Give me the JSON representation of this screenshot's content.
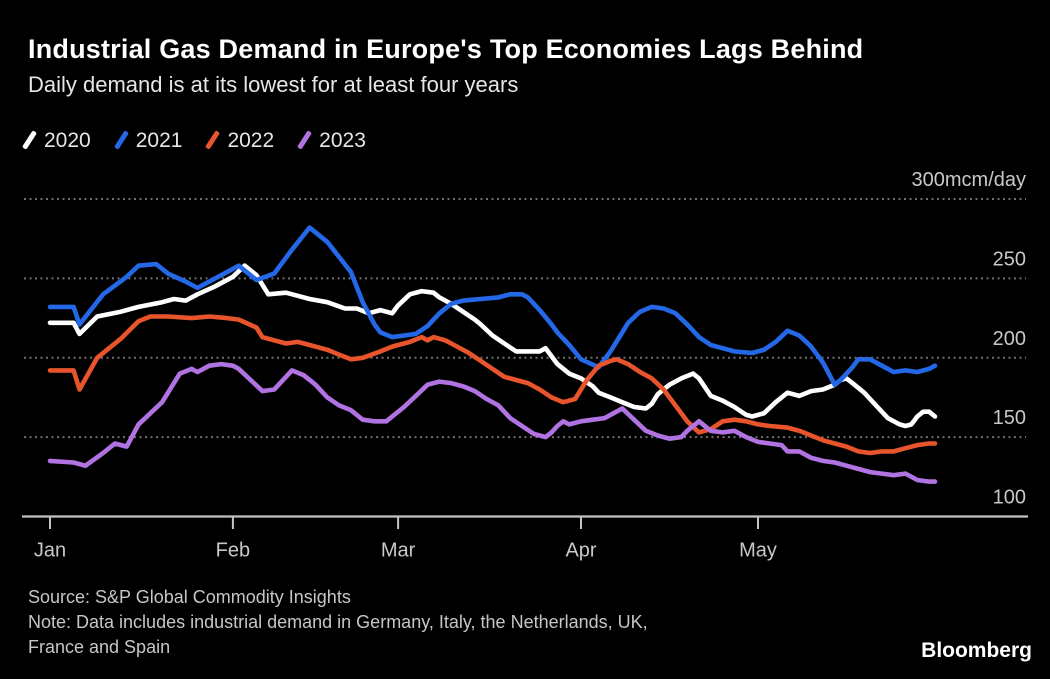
{
  "header": {
    "title": "Industrial Gas Demand in Europe's Top Economies Lags Behind",
    "subtitle": "Daily demand is at its lowest for at least four years"
  },
  "legend": {
    "items": [
      {
        "label": "2020",
        "color": "#ffffff"
      },
      {
        "label": "2021",
        "color": "#2468e8"
      },
      {
        "label": "2022",
        "color": "#e8542c"
      },
      {
        "label": "2023",
        "color": "#b273e2"
      }
    ]
  },
  "chart_data": {
    "type": "line",
    "title": "Industrial Gas Demand in Europe's Top Economies Lags Behind",
    "subtitle": "Daily demand is at its lowest for at least four years",
    "ylabel": "mcm/day",
    "ylim": [
      100,
      300
    ],
    "grid": "dotted-horizontal",
    "legend_position": "top-left",
    "x_unit": "day of year (0 = Jan 1)",
    "x_axis": {
      "tick_days": [
        0,
        31,
        59,
        90,
        120
      ],
      "tick_labels": [
        "Jan",
        "Feb",
        "Mar",
        "Apr",
        "May"
      ]
    },
    "y_axis": {
      "gridline_values": [
        300,
        250,
        200,
        150
      ],
      "baseline_value": 100,
      "labels": [
        {
          "value": 300,
          "text": "300mcm/day"
        },
        {
          "value": 250,
          "text": "250"
        },
        {
          "value": 200,
          "text": "200"
        },
        {
          "value": 150,
          "text": "150"
        },
        {
          "value": 100,
          "text": "100"
        }
      ]
    },
    "colors": {
      "gridline": "#6f6f6f",
      "axis": "#c4c4c4",
      "axis_text": "#c8c8c8"
    },
    "series": [
      {
        "name": "2020",
        "color": "#ffffff",
        "points": [
          [
            0,
            222
          ],
          [
            4,
            222
          ],
          [
            5,
            215
          ],
          [
            8,
            226
          ],
          [
            12,
            229
          ],
          [
            15,
            232
          ],
          [
            19,
            235
          ],
          [
            21,
            237
          ],
          [
            23,
            236
          ],
          [
            25,
            240
          ],
          [
            28,
            245
          ],
          [
            31,
            251
          ],
          [
            33,
            258
          ],
          [
            35,
            252
          ],
          [
            37,
            240
          ],
          [
            40,
            241
          ],
          [
            42,
            239
          ],
          [
            44,
            237
          ],
          [
            47,
            235
          ],
          [
            50,
            231
          ],
          [
            52,
            231
          ],
          [
            54,
            228
          ],
          [
            56,
            230
          ],
          [
            58,
            228
          ],
          [
            59,
            233
          ],
          [
            61,
            240
          ],
          [
            63,
            242
          ],
          [
            65,
            241
          ],
          [
            66,
            238
          ],
          [
            68,
            234
          ],
          [
            70,
            229
          ],
          [
            72,
            224
          ],
          [
            73,
            221
          ],
          [
            75,
            214
          ],
          [
            77,
            209
          ],
          [
            79,
            204
          ],
          [
            81,
            204
          ],
          [
            83,
            204
          ],
          [
            84,
            206
          ],
          [
            86,
            196
          ],
          [
            88,
            190
          ],
          [
            90,
            187
          ],
          [
            92,
            182
          ],
          [
            93,
            178
          ],
          [
            95,
            175
          ],
          [
            97,
            172
          ],
          [
            99,
            169
          ],
          [
            101,
            168
          ],
          [
            102,
            171
          ],
          [
            103,
            177
          ],
          [
            105,
            183
          ],
          [
            107,
            187
          ],
          [
            109,
            190
          ],
          [
            110,
            187
          ],
          [
            112,
            176
          ],
          [
            114,
            173
          ],
          [
            116,
            169
          ],
          [
            118,
            164
          ],
          [
            119,
            163
          ],
          [
            121,
            165
          ],
          [
            123,
            172
          ],
          [
            125,
            178
          ],
          [
            127,
            176
          ],
          [
            129,
            179
          ],
          [
            131,
            180
          ],
          [
            133,
            183
          ],
          [
            134,
            186
          ],
          [
            135,
            187
          ],
          [
            136,
            184
          ],
          [
            138,
            178
          ],
          [
            140,
            170
          ],
          [
            142,
            162
          ],
          [
            144,
            158
          ],
          [
            145,
            157
          ],
          [
            146,
            158
          ],
          [
            147,
            163
          ],
          [
            148,
            166
          ],
          [
            149,
            166
          ],
          [
            150,
            163
          ]
        ]
      },
      {
        "name": "2021",
        "color": "#2468e8",
        "points": [
          [
            0,
            232
          ],
          [
            4,
            232
          ],
          [
            5,
            221
          ],
          [
            9,
            240
          ],
          [
            13,
            251
          ],
          [
            15,
            258
          ],
          [
            18,
            259
          ],
          [
            20,
            253
          ],
          [
            23,
            248
          ],
          [
            25,
            244
          ],
          [
            28,
            250
          ],
          [
            32,
            258
          ],
          [
            35,
            249
          ],
          [
            38,
            253
          ],
          [
            41,
            268
          ],
          [
            44,
            282
          ],
          [
            47,
            273
          ],
          [
            51,
            254
          ],
          [
            53,
            235
          ],
          [
            54,
            228
          ],
          [
            55,
            221
          ],
          [
            56,
            216
          ],
          [
            58,
            213
          ],
          [
            60,
            214
          ],
          [
            62,
            215
          ],
          [
            64,
            220
          ],
          [
            66,
            228
          ],
          [
            68,
            234
          ],
          [
            70,
            236
          ],
          [
            73,
            237
          ],
          [
            76,
            238
          ],
          [
            78,
            240
          ],
          [
            80,
            240
          ],
          [
            81,
            238
          ],
          [
            83,
            230
          ],
          [
            85,
            221
          ],
          [
            86,
            216
          ],
          [
            88,
            208
          ],
          [
            90,
            199
          ],
          [
            93,
            194
          ],
          [
            95,
            204
          ],
          [
            97,
            216
          ],
          [
            98,
            222
          ],
          [
            100,
            229
          ],
          [
            102,
            232
          ],
          [
            104,
            231
          ],
          [
            106,
            228
          ],
          [
            108,
            221
          ],
          [
            110,
            213
          ],
          [
            112,
            208
          ],
          [
            114,
            206
          ],
          [
            116,
            204
          ],
          [
            119,
            203
          ],
          [
            121,
            205
          ],
          [
            123,
            210
          ],
          [
            125,
            217
          ],
          [
            127,
            214
          ],
          [
            129,
            207
          ],
          [
            131,
            197
          ],
          [
            133,
            183
          ],
          [
            134,
            186
          ],
          [
            136,
            194
          ],
          [
            137,
            199
          ],
          [
            139,
            199
          ],
          [
            141,
            195
          ],
          [
            143,
            191
          ],
          [
            145,
            192
          ],
          [
            147,
            191
          ],
          [
            149,
            193
          ],
          [
            150,
            195
          ]
        ]
      },
      {
        "name": "2022",
        "color": "#e8542c",
        "points": [
          [
            0,
            192
          ],
          [
            4,
            192
          ],
          [
            5,
            180
          ],
          [
            8,
            200
          ],
          [
            12,
            212
          ],
          [
            15,
            223
          ],
          [
            17,
            226
          ],
          [
            20,
            226
          ],
          [
            24,
            225
          ],
          [
            27,
            226
          ],
          [
            30,
            225
          ],
          [
            32,
            224
          ],
          [
            35,
            219
          ],
          [
            36,
            213
          ],
          [
            38,
            211
          ],
          [
            40,
            209
          ],
          [
            42,
            210
          ],
          [
            44,
            208
          ],
          [
            47,
            205
          ],
          [
            49,
            202
          ],
          [
            51,
            199
          ],
          [
            53,
            200
          ],
          [
            56,
            204
          ],
          [
            58,
            207
          ],
          [
            61,
            210
          ],
          [
            63,
            213
          ],
          [
            64,
            211
          ],
          [
            65,
            213
          ],
          [
            67,
            211
          ],
          [
            69,
            207
          ],
          [
            71,
            203
          ],
          [
            73,
            198
          ],
          [
            75,
            193
          ],
          [
            77,
            188
          ],
          [
            79,
            186
          ],
          [
            81,
            184
          ],
          [
            83,
            180
          ],
          [
            85,
            175
          ],
          [
            87,
            172
          ],
          [
            89,
            174
          ],
          [
            91,
            186
          ],
          [
            93,
            195
          ],
          [
            95,
            198
          ],
          [
            96,
            199
          ],
          [
            98,
            196
          ],
          [
            100,
            191
          ],
          [
            102,
            187
          ],
          [
            104,
            180
          ],
          [
            106,
            170
          ],
          [
            108,
            160
          ],
          [
            110,
            153
          ],
          [
            112,
            155
          ],
          [
            114,
            160
          ],
          [
            116,
            161
          ],
          [
            118,
            160
          ],
          [
            120,
            158
          ],
          [
            122,
            157
          ],
          [
            125,
            156
          ],
          [
            127,
            154
          ],
          [
            129,
            151
          ],
          [
            131,
            148
          ],
          [
            133,
            146
          ],
          [
            135,
            144
          ],
          [
            137,
            141
          ],
          [
            139,
            140
          ],
          [
            141,
            141
          ],
          [
            143,
            141
          ],
          [
            145,
            143
          ],
          [
            147,
            145
          ],
          [
            149,
            146
          ],
          [
            150,
            146
          ]
        ]
      },
      {
        "name": "2023",
        "color": "#b273e2",
        "points": [
          [
            0,
            135
          ],
          [
            4,
            134
          ],
          [
            6,
            132
          ],
          [
            9,
            140
          ],
          [
            11,
            146
          ],
          [
            13,
            144
          ],
          [
            15,
            158
          ],
          [
            19,
            172
          ],
          [
            22,
            190
          ],
          [
            24,
            193
          ],
          [
            25,
            191
          ],
          [
            27,
            195
          ],
          [
            29,
            196
          ],
          [
            31,
            195
          ],
          [
            32,
            193
          ],
          [
            34,
            186
          ],
          [
            36,
            179
          ],
          [
            38,
            180
          ],
          [
            40,
            188
          ],
          [
            41,
            192
          ],
          [
            43,
            189
          ],
          [
            45,
            183
          ],
          [
            47,
            175
          ],
          [
            49,
            170
          ],
          [
            51,
            167
          ],
          [
            53,
            161
          ],
          [
            55,
            160
          ],
          [
            57,
            160
          ],
          [
            58,
            163
          ],
          [
            60,
            169
          ],
          [
            62,
            176
          ],
          [
            64,
            183
          ],
          [
            66,
            185
          ],
          [
            68,
            184
          ],
          [
            70,
            182
          ],
          [
            72,
            179
          ],
          [
            74,
            174
          ],
          [
            76,
            170
          ],
          [
            78,
            162
          ],
          [
            80,
            157
          ],
          [
            82,
            152
          ],
          [
            84,
            150
          ],
          [
            85,
            153
          ],
          [
            86,
            157
          ],
          [
            87,
            160
          ],
          [
            88,
            158
          ],
          [
            90,
            160
          ],
          [
            92,
            161
          ],
          [
            94,
            162
          ],
          [
            96,
            166
          ],
          [
            97,
            168
          ],
          [
            99,
            161
          ],
          [
            101,
            154
          ],
          [
            103,
            151
          ],
          [
            105,
            149
          ],
          [
            107,
            150
          ],
          [
            108,
            154
          ],
          [
            110,
            160
          ],
          [
            112,
            154
          ],
          [
            114,
            153
          ],
          [
            116,
            154
          ],
          [
            118,
            150
          ],
          [
            120,
            147
          ],
          [
            122,
            146
          ],
          [
            124,
            145
          ],
          [
            125,
            141
          ],
          [
            127,
            141
          ],
          [
            129,
            137
          ],
          [
            131,
            135
          ],
          [
            133,
            134
          ],
          [
            135,
            132
          ],
          [
            137,
            130
          ],
          [
            139,
            128
          ],
          [
            141,
            127
          ],
          [
            143,
            126
          ],
          [
            145,
            127
          ],
          [
            147,
            123
          ],
          [
            149,
            122
          ],
          [
            150,
            122
          ]
        ]
      }
    ]
  },
  "footer": {
    "source": "Source: S&P Global Commodity Insights",
    "note_line1": "Note: Data includes industrial demand in Germany, Italy, the Netherlands, UK,",
    "note_line2": "France and Spain",
    "brand": "Bloomberg"
  }
}
